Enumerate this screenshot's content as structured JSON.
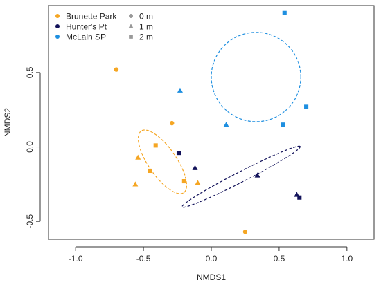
{
  "chart_data": {
    "type": "scatter",
    "xlabel": "NMDS1",
    "ylabel": "NMDS2",
    "xlim": [
      -1.2,
      1.2
    ],
    "ylim": [
      -0.62,
      0.95
    ],
    "x_ticks": [
      -1.0,
      -0.5,
      0.0,
      0.5,
      1.0
    ],
    "x_tick_labels": [
      "-1.0",
      "-0.5",
      "0.0",
      "0.5",
      "1.0"
    ],
    "y_ticks": [
      -0.5,
      0.0,
      0.5
    ],
    "y_tick_labels": [
      "-0.5",
      "0.0",
      "0.5"
    ],
    "grid": false,
    "legend_position": "top-left",
    "site_legend": [
      {
        "name": "Brunette Park",
        "color": "#f5a623"
      },
      {
        "name": "Hunter's Pt",
        "color": "#12125a"
      },
      {
        "name": "McLain SP",
        "color": "#1e8fe0"
      }
    ],
    "depth_legend": [
      {
        "name": "0 m",
        "shape": "circle"
      },
      {
        "name": "1 m",
        "shape": "triangle"
      },
      {
        "name": "2 m",
        "shape": "square"
      }
    ],
    "legend_marker_color": "#999999",
    "series": [
      {
        "name": "Brunette Park",
        "color": "#f5a623",
        "points": [
          {
            "x": -0.7,
            "y": 0.52,
            "depth": "0 m"
          },
          {
            "x": -0.29,
            "y": 0.16,
            "depth": "0 m"
          },
          {
            "x": 0.25,
            "y": -0.57,
            "depth": "0 m"
          },
          {
            "x": -0.54,
            "y": -0.07,
            "depth": "1 m"
          },
          {
            "x": -0.56,
            "y": -0.25,
            "depth": "1 m"
          },
          {
            "x": -0.1,
            "y": -0.24,
            "depth": "1 m"
          },
          {
            "x": -0.41,
            "y": 0.01,
            "depth": "2 m"
          },
          {
            "x": -0.45,
            "y": -0.16,
            "depth": "2 m"
          },
          {
            "x": -0.2,
            "y": -0.23,
            "depth": "2 m"
          }
        ],
        "ellipse": {
          "cx": -0.36,
          "cy": -0.1,
          "rx": 0.26,
          "ry": 0.1,
          "angle_deg": -52
        }
      },
      {
        "name": "Hunter's Pt",
        "color": "#12125a",
        "points": [
          {
            "x": -0.12,
            "y": -0.14,
            "depth": "1 m"
          },
          {
            "x": 0.34,
            "y": -0.19,
            "depth": "1 m"
          },
          {
            "x": 0.63,
            "y": -0.32,
            "depth": "1 m"
          },
          {
            "x": -0.24,
            "y": -0.04,
            "depth": "2 m"
          },
          {
            "x": 0.65,
            "y": -0.34,
            "depth": "2 m"
          }
        ],
        "ellipse": {
          "cx": 0.22,
          "cy": -0.2,
          "rx": 0.48,
          "ry": 0.035,
          "angle_deg": 25
        }
      },
      {
        "name": "McLain SP",
        "color": "#1e8fe0",
        "points": [
          {
            "x": -0.23,
            "y": 0.38,
            "depth": "1 m"
          },
          {
            "x": 0.11,
            "y": 0.15,
            "depth": "1 m"
          },
          {
            "x": 0.54,
            "y": 0.9,
            "depth": "2 m"
          },
          {
            "x": 0.7,
            "y": 0.27,
            "depth": "2 m"
          },
          {
            "x": 0.53,
            "y": 0.15,
            "depth": "2 m"
          }
        ],
        "ellipse": {
          "cx": 0.33,
          "cy": 0.47,
          "rx": 0.33,
          "ry": 0.3,
          "angle_deg": 0
        }
      }
    ]
  }
}
